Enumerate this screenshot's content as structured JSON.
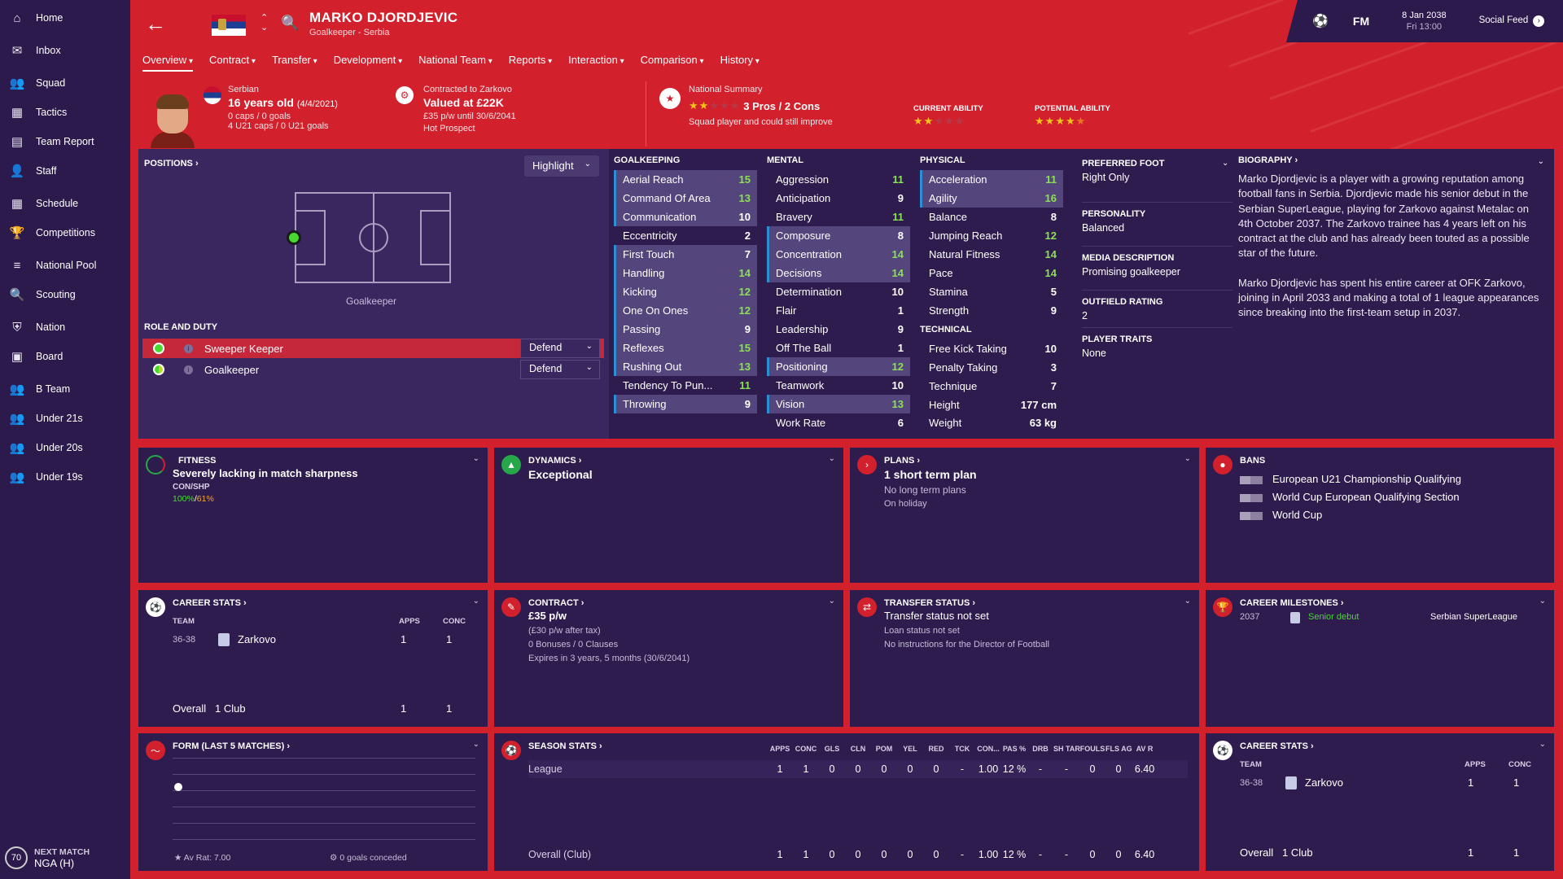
{
  "sidebar": {
    "items": [
      {
        "label": "Home",
        "icon": "home-icon"
      },
      {
        "label": "Inbox",
        "icon": "inbox-icon"
      },
      {
        "label": "Squad",
        "icon": "squad-icon"
      },
      {
        "label": "Tactics",
        "icon": "tactics-icon"
      },
      {
        "label": "Team Report",
        "icon": "report-icon"
      },
      {
        "label": "Staff",
        "icon": "staff-icon"
      },
      {
        "label": "Schedule",
        "icon": "calendar-icon"
      },
      {
        "label": "Competitions",
        "icon": "trophy-icon"
      },
      {
        "label": "National Pool",
        "icon": "list-icon"
      },
      {
        "label": "Scouting",
        "icon": "search-icon"
      },
      {
        "label": "Nation",
        "icon": "shield-icon"
      },
      {
        "label": "Board",
        "icon": "briefcase-icon"
      },
      {
        "label": "B Team",
        "icon": "team-icon"
      },
      {
        "label": "Under 21s",
        "icon": "team-icon"
      },
      {
        "label": "Under 20s",
        "icon": "team-icon"
      },
      {
        "label": "Under 19s",
        "icon": "team-icon"
      }
    ],
    "next_match_label": "NEXT MATCH",
    "next_match_value": "NGA (H)",
    "next_match_badge": "70"
  },
  "header": {
    "name": "MARKO DJORDJEVIC",
    "subtitle": "Goalkeeper - Serbia",
    "fm": "FM",
    "date": "8 Jan 2038",
    "time": "Fri 13:00",
    "social": "Social Feed"
  },
  "tabs": [
    "Overview",
    "Contract",
    "Transfer",
    "Development",
    "National Team",
    "Reports",
    "Interaction",
    "Comparison",
    "History"
  ],
  "summary": {
    "nationality": "Serbian",
    "age": "16 years old",
    "dob": "(4/4/2021)",
    "caps": "0 caps / 0 goals",
    "u21caps": "4 U21 caps / 0 U21 goals",
    "contracted": "Contracted to Zarkovo",
    "valued": "Valued at £22K",
    "wage": "£35 p/w until 30/6/2041",
    "prospect": "Hot Prospect",
    "national_summary": "National Summary",
    "pros_cons": "3 Pros / 2 Cons",
    "squad_note": "Squad player and could still improve",
    "current_ability_label": "CURRENT ABILITY",
    "potential_ability_label": "POTENTIAL ABILITY",
    "national_stars": 2,
    "current_stars": 2,
    "potential_stars": 4.5
  },
  "positions": {
    "title": "POSITIONS",
    "highlight": "Highlight",
    "pitch_label": "Goalkeeper",
    "role_title": "ROLE AND DUTY",
    "roles": [
      {
        "name": "Sweeper Keeper",
        "duty": "Defend"
      },
      {
        "name": "Goalkeeper",
        "duty": "Defend"
      }
    ]
  },
  "attributes": {
    "goalkeeping": {
      "title": "GOALKEEPING",
      "rows": [
        [
          "Aerial Reach",
          "15"
        ],
        [
          "Command Of Area",
          "13"
        ],
        [
          "Communication",
          "10"
        ],
        [
          "Eccentricity",
          "2"
        ],
        [
          "First Touch",
          "7"
        ],
        [
          "Handling",
          "14"
        ],
        [
          "Kicking",
          "12"
        ],
        [
          "One On Ones",
          "12"
        ],
        [
          "Passing",
          "9"
        ],
        [
          "Reflexes",
          "15"
        ],
        [
          "Rushing Out",
          "13"
        ],
        [
          "Tendency To Pun...",
          "11"
        ],
        [
          "Throwing",
          "9"
        ]
      ]
    },
    "mental": {
      "title": "MENTAL",
      "rows": [
        [
          "Aggression",
          "11"
        ],
        [
          "Anticipation",
          "9"
        ],
        [
          "Bravery",
          "11"
        ],
        [
          "Composure",
          "8"
        ],
        [
          "Concentration",
          "14"
        ],
        [
          "Decisions",
          "14"
        ],
        [
          "Determination",
          "10"
        ],
        [
          "Flair",
          "1"
        ],
        [
          "Leadership",
          "9"
        ],
        [
          "Off The Ball",
          "1"
        ],
        [
          "Positioning",
          "12"
        ],
        [
          "Teamwork",
          "10"
        ],
        [
          "Vision",
          "13"
        ],
        [
          "Work Rate",
          "6"
        ]
      ]
    },
    "physical": {
      "title": "PHYSICAL",
      "rows": [
        [
          "Acceleration",
          "11"
        ],
        [
          "Agility",
          "16"
        ],
        [
          "Balance",
          "8"
        ],
        [
          "Jumping Reach",
          "12"
        ],
        [
          "Natural Fitness",
          "14"
        ],
        [
          "Pace",
          "14"
        ],
        [
          "Stamina",
          "5"
        ],
        [
          "Strength",
          "9"
        ]
      ]
    },
    "technical": {
      "title": "TECHNICAL",
      "rows": [
        [
          "Free Kick Taking",
          "10"
        ],
        [
          "Penalty Taking",
          "3"
        ],
        [
          "Technique",
          "7"
        ]
      ]
    },
    "height_label": "Height",
    "height": "177 cm",
    "weight_label": "Weight",
    "weight": "63 kg"
  },
  "details": {
    "pref_foot_label": "PREFERRED FOOT",
    "pref_foot": "Right Only",
    "personality_label": "PERSONALITY",
    "personality": "Balanced",
    "media_label": "MEDIA DESCRIPTION",
    "media": "Promising goalkeeper",
    "outfield_label": "OUTFIELD RATING",
    "outfield": "2",
    "traits_label": "PLAYER TRAITS",
    "traits": "None",
    "bio_title": "BIOGRAPHY",
    "bio_p1": "Marko Djordjevic is a player with a growing reputation among football fans in Serbia. Djordjevic made his senior debut in the Serbian SuperLeague, playing for Zarkovo against Metalac on 4th October 2037. The Zarkovo trainee has 4 years left on his contract at the club and has already been touted as a possible star of the future.",
    "bio_p2": "Marko Djordjevic has spent his entire career at OFK Zarkovo, joining in April 2033 and making a total of 1 league appearances since breaking into the first-team setup in 2037."
  },
  "fitness": {
    "title": "FITNESS",
    "text": "Severely lacking in match sharpness",
    "label": "CON/SHP",
    "con": "100%",
    "shp": "61%"
  },
  "dynamics": {
    "title": "DYNAMICS",
    "text": "Exceptional"
  },
  "plans": {
    "title": "PLANS",
    "text": "1 short term plan",
    "l1": "No long term plans",
    "l2": "On holiday"
  },
  "bans": {
    "title": "BANS",
    "items": [
      "European U21 Championship Qualifying",
      "World Cup European Qualifying Section",
      "World Cup"
    ]
  },
  "career_stats": {
    "title": "CAREER STATS",
    "h_team": "TEAM",
    "h_apps": "APPS",
    "h_conc": "CONC",
    "season": "36-38",
    "team": "Zarkovo",
    "apps": "1",
    "conc": "1",
    "overall": "Overall",
    "clubs": "1 Club",
    "o_apps": "1",
    "o_conc": "1"
  },
  "contract": {
    "title": "CONTRACT",
    "wage": "£35 p/w",
    "after_tax": "(£30 p/w after tax)",
    "bonuses": "0 Bonuses / 0 Clauses",
    "expires": "Expires in 3 years, 5 months (30/6/2041)"
  },
  "transfer": {
    "title": "TRANSFER STATUS",
    "status": "Transfer status not set",
    "loan": "Loan status not set",
    "dof": "No instructions for the Director of Football"
  },
  "milestones": {
    "title": "CAREER MILESTONES",
    "year": "2037",
    "event": "Senior debut",
    "comp": "Serbian SuperLeague"
  },
  "form": {
    "title": "FORM (LAST 5 MATCHES)",
    "av_rat": "Av Rat: 7.00",
    "goals": "0 goals conceded"
  },
  "season_stats": {
    "title": "SEASON STATS",
    "headers": [
      "APPS",
      "CONC",
      "GLS",
      "CLN",
      "POM",
      "YEL",
      "RED",
      "TCK",
      "CON...",
      "PAS %",
      "DRB",
      "SH TAR",
      "FOULS",
      "FLS AG",
      "AV R"
    ],
    "league_label": "League",
    "league": [
      "1",
      "1",
      "0",
      "0",
      "0",
      "0",
      "0",
      "-",
      "1.00",
      "12 %",
      "-",
      "-",
      "0",
      "0",
      "6.40"
    ],
    "overall_label": "Overall (Club)",
    "overall": [
      "1",
      "1",
      "0",
      "0",
      "0",
      "0",
      "0",
      "-",
      "1.00",
      "12 %",
      "-",
      "-",
      "0",
      "0",
      "6.40"
    ]
  },
  "career_stats2": {
    "title": "CAREER STATS",
    "h_team": "TEAM",
    "h_apps": "APPS",
    "h_conc": "CONC",
    "season": "36-38",
    "team": "Zarkovo",
    "apps": "1",
    "conc": "1",
    "overall": "Overall",
    "clubs": "1 Club",
    "o_apps": "1",
    "o_conc": "1"
  }
}
